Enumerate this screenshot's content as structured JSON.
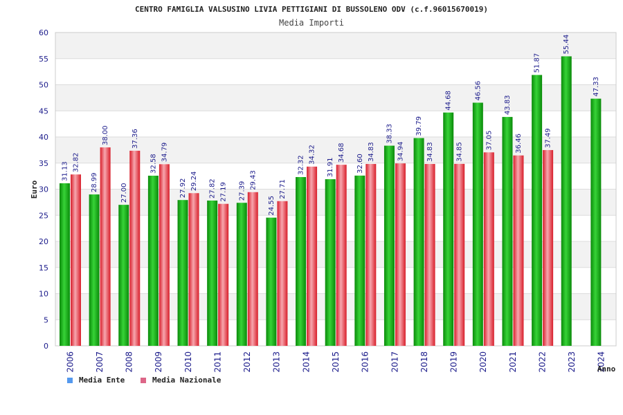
{
  "colors": {
    "ente_dark": "#0a8a0a",
    "ente_light": "#37d337",
    "naz_dark": "#d81e2a",
    "naz_light": "#f7a6ae",
    "legend_ente": "#5599ee",
    "legend_naz": "#dd6688",
    "band": "#f2f2f2",
    "label": "#1a1a8a"
  },
  "chart_data": {
    "type": "bar",
    "title": "CENTRO FAMIGLIA VALSUSINO LIVIA PETTIGIANI DI BUSSOLENO ODV (c.f.96015670019)",
    "subtitle": "Media Importi",
    "ylabel": "Euro",
    "xlabel": "Anno",
    "ylim": [
      0,
      60
    ],
    "yticks": [
      0,
      5,
      10,
      15,
      20,
      25,
      30,
      35,
      40,
      45,
      50,
      55,
      60
    ],
    "categories": [
      "2006",
      "2007",
      "2008",
      "2009",
      "2010",
      "2011",
      "2012",
      "2013",
      "2014",
      "2015",
      "2016",
      "2017",
      "2018",
      "2019",
      "2020",
      "2021",
      "2022",
      "2023",
      "2024"
    ],
    "series": [
      {
        "name": "Media Ente",
        "values": [
          31.13,
          28.99,
          27.0,
          32.58,
          27.92,
          27.82,
          27.39,
          24.55,
          32.32,
          31.91,
          32.6,
          38.33,
          39.79,
          44.68,
          46.56,
          43.83,
          51.87,
          55.44,
          47.33
        ],
        "labels": [
          "31.13",
          "28.99",
          "27.00",
          "32.58",
          "27.92",
          "27.82",
          "27.39",
          "24.55",
          "32.32",
          "31.91",
          "32.60",
          "38.33",
          "39.79",
          "44.68",
          "46.56",
          "43.83",
          "51.87",
          "55.44",
          "47.33"
        ]
      },
      {
        "name": "Media Nazionale",
        "values": [
          32.82,
          38.0,
          37.36,
          34.79,
          29.24,
          27.19,
          29.43,
          27.71,
          34.32,
          34.68,
          34.83,
          34.94,
          34.83,
          34.85,
          37.05,
          36.46,
          37.49,
          null,
          null
        ],
        "labels": [
          "32.82",
          "38.00",
          "37.36",
          "34.79",
          "29.24",
          "27.19",
          "29.43",
          "27.71",
          "34.32",
          "34.68",
          "34.83",
          "34.94",
          "34.83",
          "34.85",
          "37.05",
          "36.46",
          "37.49",
          null,
          null
        ]
      }
    ],
    "grid": true,
    "legend_position": "bottom-left"
  }
}
